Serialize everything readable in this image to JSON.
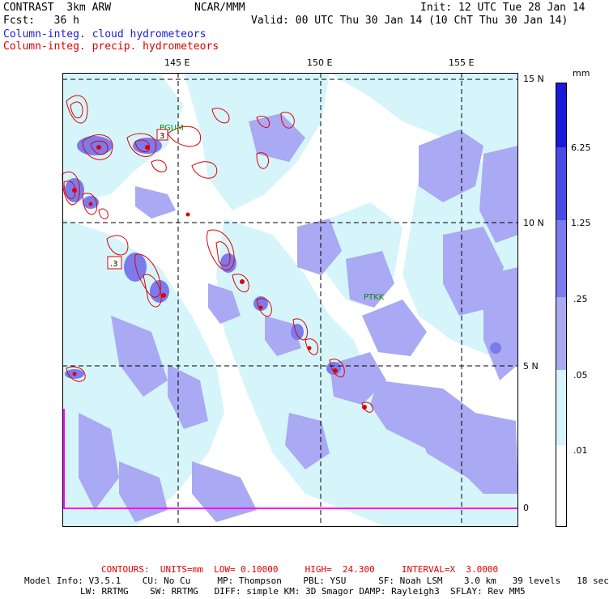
{
  "header": {
    "model": "CONTRAST  3km ARW",
    "center": "NCAR/MMM",
    "init": "Init: 12 UTC Tue 28 Jan 14",
    "fcst": "Fcst:   36 h",
    "valid": "Valid: 00 UTC Thu 30 Jan 14 (10 ChT Thu 30 Jan 14)",
    "field1": "Column-integ. cloud hydrometeors",
    "field2": "Column-integ. precip. hydrometeors"
  },
  "map": {
    "lon_labels": [
      "145 E",
      "150 E",
      "155 E"
    ],
    "lat_labels": [
      "15 N",
      "10 N",
      "5 N",
      "0"
    ],
    "stations": [
      "PGUM",
      "PTKK"
    ],
    "contour_labels": [
      "3",
      ".3"
    ]
  },
  "colorbar": {
    "unit": "mm",
    "labels": [
      "6.25",
      "1.25",
      ".25",
      ".05",
      ".01"
    ],
    "colors": [
      "#1a1ad8",
      "#4a4ae6",
      "#7b7bee",
      "#a9a9f4",
      "#d6f5fb",
      "#ffffff"
    ]
  },
  "footer": {
    "contours": "CONTOURS:  UNITS=mm  LOW= 0.10000     HIGH=  24.300     INTERVAL=X  3.0000",
    "model_info1": "Model Info: V3.5.1    CU: No Cu     MP: Thompson    PBL: YSU      SF: Noah LSM    3.0 km   39 levels   18 sec",
    "model_info2": "LW: RRTMG    SW: RRTMG   DIFF: simple KM: 3D Smagor DAMP: Rayleigh3  SFLAY: Rev MM5"
  },
  "colors": {
    "cloud_light": "#d6f5fb",
    "cloud_mid": "#a9a9f4",
    "cloud_dark": "#7b7bee",
    "precip_contour": "#e00000",
    "boundary": "#ff00ff"
  }
}
